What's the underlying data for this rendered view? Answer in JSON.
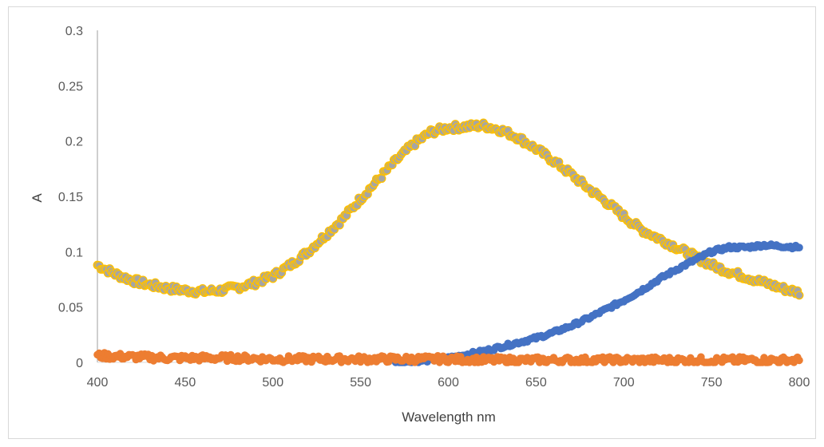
{
  "chart_data": {
    "type": "scatter",
    "title": "",
    "xlabel": "Wavelength nm",
    "ylabel": "A",
    "xlim": [
      400,
      800
    ],
    "ylim": [
      0,
      0.3
    ],
    "x_ticks": [
      400,
      450,
      500,
      550,
      600,
      650,
      700,
      750,
      800
    ],
    "y_ticks": [
      0,
      0.05,
      0.1,
      0.15,
      0.2,
      0.25,
      0.3
    ],
    "y_tick_labels": [
      "0",
      "0.05",
      "0.1",
      "0.15",
      "0.2",
      "0.25",
      "0.3"
    ],
    "grid": false,
    "legend": "none",
    "series": [
      {
        "color": "#a5a5a5",
        "marker_edge": "#ffc000",
        "x": [
          400,
          410,
          420,
          430,
          440,
          450,
          460,
          470,
          480,
          490,
          500,
          510,
          520,
          530,
          540,
          550,
          560,
          570,
          580,
          590,
          600,
          610,
          620,
          630,
          640,
          650,
          660,
          670,
          680,
          690,
          700,
          710,
          720,
          730,
          740,
          750,
          760,
          770,
          780,
          790,
          800
        ],
        "y": [
          0.088,
          0.08,
          0.074,
          0.07,
          0.067,
          0.065,
          0.064,
          0.065,
          0.068,
          0.072,
          0.078,
          0.088,
          0.1,
          0.115,
          0.13,
          0.148,
          0.165,
          0.182,
          0.197,
          0.208,
          0.212,
          0.213,
          0.214,
          0.21,
          0.203,
          0.193,
          0.182,
          0.17,
          0.157,
          0.145,
          0.132,
          0.12,
          0.112,
          0.104,
          0.096,
          0.088,
          0.082,
          0.077,
          0.072,
          0.067,
          0.063
        ]
      },
      {
        "color": "#4472c4",
        "x": [
          570,
          580,
          590,
          600,
          610,
          620,
          630,
          640,
          650,
          660,
          670,
          680,
          690,
          700,
          710,
          720,
          730,
          740,
          750,
          760,
          770,
          780,
          790,
          800
        ],
        "y": [
          0,
          0.001,
          0.002,
          0.004,
          0.007,
          0.01,
          0.014,
          0.018,
          0.022,
          0.027,
          0.033,
          0.04,
          0.048,
          0.056,
          0.065,
          0.075,
          0.084,
          0.092,
          0.1,
          0.104,
          0.104,
          0.106,
          0.105,
          0.104
        ]
      },
      {
        "color": "#ed7d31",
        "x": [
          400,
          420,
          440,
          460,
          480,
          500,
          520,
          540,
          560,
          580,
          600,
          620,
          640,
          660,
          680,
          700,
          720,
          740,
          760,
          780,
          800
        ],
        "y": [
          0.006,
          0.005,
          0.004,
          0.004,
          0.004,
          0.003,
          0.003,
          0.003,
          0.003,
          0.003,
          0.003,
          0.002,
          0.002,
          0.002,
          0.002,
          0.002,
          0.002,
          0.002,
          0.002,
          0.002,
          0.002
        ]
      }
    ]
  }
}
